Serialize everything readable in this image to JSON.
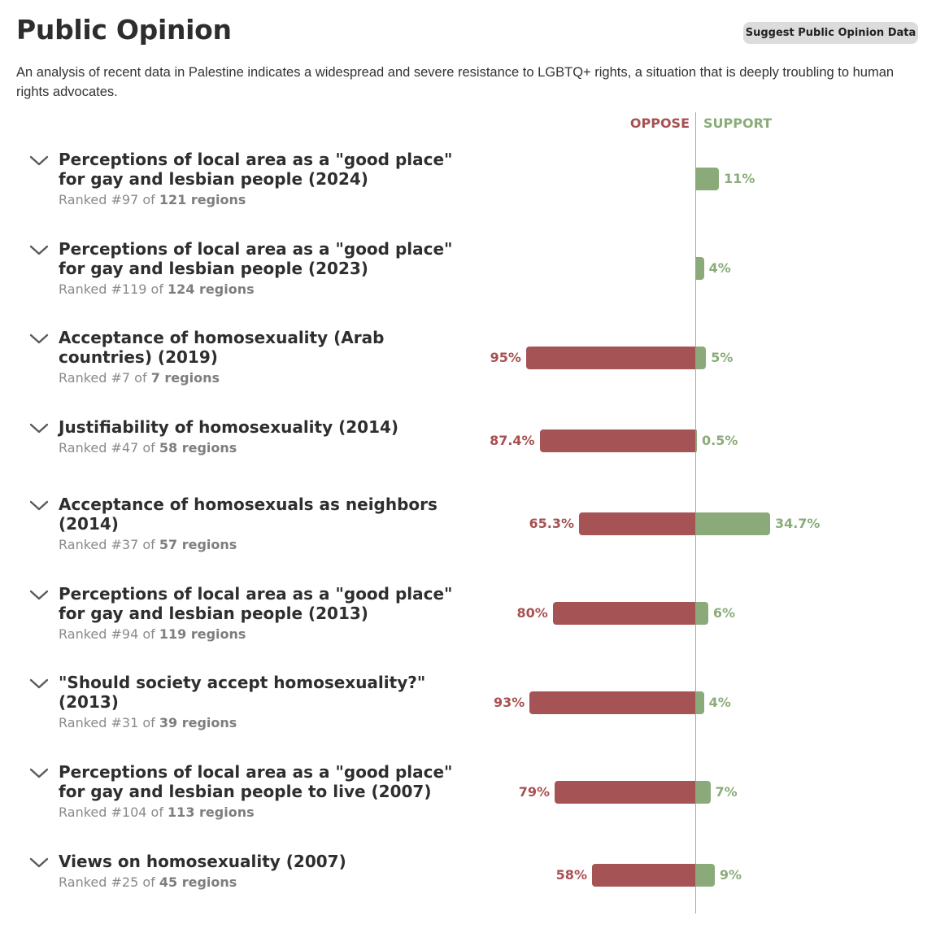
{
  "header": {
    "title": "Public Opinion",
    "suggest_button": "Suggest Public Opinion Data",
    "intro": "An analysis of recent data in Palestine indicates a widespread and severe resistance to LGBTQ+ rights, a situation that is deeply troubling to human rights advocates."
  },
  "legend": {
    "oppose": "OPPOSE",
    "support": "SUPPORT"
  },
  "colors": {
    "oppose": "#a65355",
    "support": "#8aab79"
  },
  "icons": {
    "expand": "chevron-down-icon"
  },
  "chart_data": {
    "type": "bar",
    "orientation": "diverging-horizontal",
    "title": "Public Opinion",
    "xlim": [
      -100,
      100
    ],
    "series": [
      {
        "name": "OPPOSE",
        "values": [
          null,
          null,
          95,
          87.4,
          65.3,
          80,
          93,
          79,
          58
        ]
      },
      {
        "name": "SUPPORT",
        "values": [
          11,
          4,
          5,
          0.5,
          34.7,
          6,
          4,
          7,
          9
        ]
      }
    ],
    "rows": [
      {
        "title": "Perceptions of local area as a \"good place\" for gay and lesbian people (2024)",
        "rank_prefix": "Ranked #97 of",
        "rank_total": "121 regions",
        "oppose": null,
        "oppose_label": "",
        "support": 11,
        "support_label": "11%"
      },
      {
        "title": "Perceptions of local area as a \"good place\" for gay and lesbian people (2023)",
        "rank_prefix": "Ranked #119 of",
        "rank_total": "124 regions",
        "oppose": null,
        "oppose_label": "",
        "support": 4,
        "support_label": "4%"
      },
      {
        "title": "Acceptance of homosexuality (Arab countries) (2019)",
        "rank_prefix": "Ranked #7 of",
        "rank_total": "7 regions",
        "oppose": 95,
        "oppose_label": "95%",
        "support": 5,
        "support_label": "5%"
      },
      {
        "title": "Justifiability of homosexuality (2014)",
        "rank_prefix": "Ranked #47 of",
        "rank_total": "58 regions",
        "oppose": 87.4,
        "oppose_label": "87.4%",
        "support": 0.5,
        "support_label": "0.5%"
      },
      {
        "title": "Acceptance of homosexuals as neighbors (2014)",
        "rank_prefix": "Ranked #37 of",
        "rank_total": "57 regions",
        "oppose": 65.3,
        "oppose_label": "65.3%",
        "support": 34.7,
        "support_label": "34.7%"
      },
      {
        "title": "Perceptions of local area as a \"good place\" for gay and lesbian people (2013)",
        "rank_prefix": "Ranked #94 of",
        "rank_total": "119 regions",
        "oppose": 80,
        "oppose_label": "80%",
        "support": 6,
        "support_label": "6%"
      },
      {
        "title": "\"Should society accept homosexuality?\" (2013)",
        "rank_prefix": "Ranked #31 of",
        "rank_total": "39 regions",
        "oppose": 93,
        "oppose_label": "93%",
        "support": 4,
        "support_label": "4%"
      },
      {
        "title": "Perceptions of local area as a \"good place\" for gay and lesbian people to live (2007)",
        "rank_prefix": "Ranked #104 of",
        "rank_total": "113 regions",
        "oppose": 79,
        "oppose_label": "79%",
        "support": 7,
        "support_label": "7%"
      },
      {
        "title": "Views on homosexuality (2007)",
        "rank_prefix": "Ranked #25 of",
        "rank_total": "45 regions",
        "oppose": 58,
        "oppose_label": "58%",
        "support": 9,
        "support_label": "9%"
      }
    ]
  }
}
